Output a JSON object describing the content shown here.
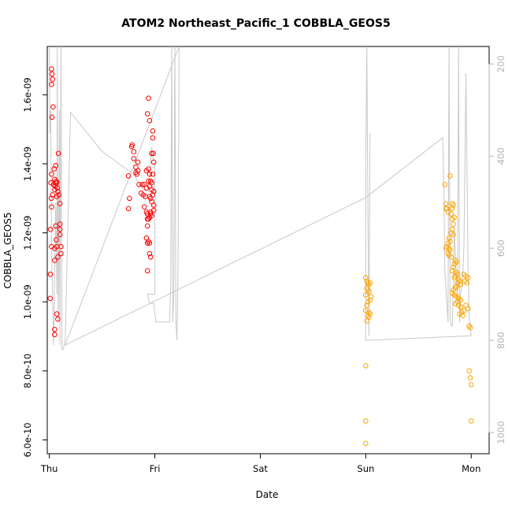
{
  "chart_data": {
    "type": "scatter",
    "title": "ATOM2 Northeast_Pacific_1 COBBLA_GEOS5",
    "xlabel": "Date",
    "ylabel": "COBBLA_GEOS5",
    "xlim": [
      -0.02,
      4.17
    ],
    "ylim": [
      5.6e-10,
      1.74e-09
    ],
    "x_ticks": [
      0,
      1,
      2,
      3,
      4
    ],
    "x_tick_labels": [
      "Thu",
      "Fri",
      "Sat",
      "Sun",
      "Mon"
    ],
    "y_ticks": [
      6e-10,
      8e-10,
      1e-09,
      1.2e-09,
      1.4e-09,
      1.6e-09
    ],
    "y_tick_labels": [
      "6.0e-10",
      "8.0e-10",
      "1.0e-09",
      "1.2e-09",
      "1.4e-09",
      "1.6e-09"
    ],
    "y2_ticks": [
      200,
      400,
      600,
      800,
      1000
    ],
    "y2_tick_labels": [
      "200",
      "400",
      "600",
      "800",
      "1000"
    ],
    "y2lim": [
      1046,
      162
    ],
    "y2_reversed": true,
    "grid": false,
    "series": [
      {
        "color": "#ff0000",
        "marker": "open-circle",
        "points": [
          [
            0.02,
            1.675
          ],
          [
            0.025,
            1.66
          ],
          [
            0.03,
            1.645
          ],
          [
            0.02,
            1.63
          ],
          [
            0.035,
            1.565
          ],
          [
            0.025,
            1.535
          ],
          [
            0.02,
            1.37
          ],
          [
            0.015,
            1.345
          ],
          [
            0.03,
            1.31
          ],
          [
            0.018,
            1.3
          ],
          [
            0.02,
            1.275
          ],
          [
            0.01,
            1.21
          ],
          [
            0.02,
            1.16
          ],
          [
            0.01,
            1.08
          ],
          [
            0.008,
            1.01
          ],
          [
            0.045,
            1.385
          ],
          [
            0.06,
            1.395
          ],
          [
            0.05,
            1.355
          ],
          [
            0.065,
            1.35
          ],
          [
            0.07,
            1.345
          ],
          [
            0.055,
            1.335
          ],
          [
            0.075,
            1.33
          ],
          [
            0.05,
            1.325
          ],
          [
            0.08,
            1.32
          ],
          [
            0.09,
            1.31
          ],
          [
            0.07,
            1.305
          ],
          [
            0.085,
            1.43
          ],
          [
            0.1,
            1.285
          ],
          [
            0.06,
            1.22
          ],
          [
            0.1,
            1.225
          ],
          [
            0.1,
            1.21
          ],
          [
            0.065,
            1.18
          ],
          [
            0.1,
            1.195
          ],
          [
            0.05,
            1.155
          ],
          [
            0.07,
            1.16
          ],
          [
            0.11,
            1.16
          ],
          [
            0.11,
            1.14
          ],
          [
            0.08,
            1.13
          ],
          [
            0.05,
            1.12
          ],
          [
            0.07,
            0.965
          ],
          [
            0.08,
            0.95
          ],
          [
            0.05,
            0.92
          ],
          [
            0.05,
            0.905
          ],
          [
            0.04,
            1.34
          ],
          [
            0.06,
            1.345
          ],
          [
            0.75,
            1.365
          ],
          [
            0.76,
            1.3
          ],
          [
            0.75,
            1.27
          ],
          [
            0.78,
            1.45
          ],
          [
            0.785,
            1.455
          ],
          [
            0.8,
            1.435
          ],
          [
            0.8,
            1.415
          ],
          [
            0.82,
            1.39
          ],
          [
            0.82,
            1.375
          ],
          [
            0.83,
            1.37
          ],
          [
            0.84,
            1.405
          ],
          [
            0.84,
            1.38
          ],
          [
            0.85,
            1.34
          ],
          [
            0.87,
            1.315
          ],
          [
            0.88,
            1.34
          ],
          [
            0.9,
            1.34
          ],
          [
            0.89,
            1.31
          ],
          [
            0.91,
            1.305
          ],
          [
            0.92,
            1.33
          ],
          [
            0.9,
            1.275
          ],
          [
            0.92,
            1.26
          ],
          [
            0.93,
            1.24
          ],
          [
            0.93,
            1.22
          ],
          [
            0.92,
            1.185
          ],
          [
            0.94,
            1.175
          ],
          [
            0.93,
            1.17
          ],
          [
            0.95,
            1.17
          ],
          [
            0.95,
            1.14
          ],
          [
            0.96,
            1.13
          ],
          [
            0.93,
            1.09
          ],
          [
            0.94,
            1.59
          ],
          [
            0.93,
            1.545
          ],
          [
            0.95,
            1.525
          ],
          [
            0.92,
            1.38
          ],
          [
            0.94,
            1.385
          ],
          [
            0.95,
            1.37
          ],
          [
            0.94,
            1.35
          ],
          [
            0.96,
            1.35
          ],
          [
            0.97,
            1.345
          ],
          [
            0.95,
            1.335
          ],
          [
            0.97,
            1.325
          ],
          [
            0.95,
            1.305
          ],
          [
            0.96,
            1.3
          ],
          [
            0.98,
            1.31
          ],
          [
            0.99,
            1.32
          ],
          [
            0.97,
            1.29
          ],
          [
            0.99,
            1.28
          ],
          [
            0.99,
            1.265
          ],
          [
            0.96,
            1.26
          ],
          [
            0.97,
            1.25
          ],
          [
            0.95,
            1.245
          ],
          [
            0.98,
            1.495
          ],
          [
            0.98,
            1.475
          ],
          [
            0.97,
            1.43
          ],
          [
            0.985,
            1.43
          ],
          [
            0.99,
            1.405
          ],
          [
            0.98,
            1.37
          ],
          [
            0.96,
            1.255
          ],
          [
            0.93,
            1.255
          ],
          [
            0.94,
            1.24
          ]
        ]
      },
      {
        "color": "#ffa500",
        "marker": "open-circle",
        "points": [
          [
            3.0,
            1.07
          ],
          [
            3.01,
            1.06
          ],
          [
            3.02,
            1.055
          ],
          [
            3.03,
            1.05
          ],
          [
            3.04,
            1.055
          ],
          [
            3.01,
            1.04
          ],
          [
            3.02,
            1.035
          ],
          [
            3.03,
            1.03
          ],
          [
            3.0,
            1.02
          ],
          [
            3.05,
            1.015
          ],
          [
            3.04,
            1.005
          ],
          [
            3.02,
            1.0
          ],
          [
            3.01,
            0.99
          ],
          [
            3.0,
            0.975
          ],
          [
            3.03,
            0.97
          ],
          [
            3.04,
            0.965
          ],
          [
            3.02,
            0.96
          ],
          [
            3.03,
            0.955
          ],
          [
            3.01,
            0.945
          ],
          [
            3.0,
            0.815
          ],
          [
            3.0,
            0.655
          ],
          [
            3.0,
            0.59
          ],
          [
            3.75,
            1.34
          ],
          [
            3.76,
            1.285
          ],
          [
            3.77,
            1.27
          ],
          [
            3.76,
            1.27
          ],
          [
            3.78,
            1.26
          ],
          [
            3.8,
            1.365
          ],
          [
            3.82,
            1.285
          ],
          [
            3.83,
            1.28
          ],
          [
            3.82,
            1.27
          ],
          [
            3.81,
            1.255
          ],
          [
            3.84,
            1.245
          ],
          [
            3.82,
            1.24
          ],
          [
            3.83,
            1.225
          ],
          [
            3.82,
            1.21
          ],
          [
            3.81,
            1.2
          ],
          [
            3.83,
            1.195
          ],
          [
            3.79,
            1.185
          ],
          [
            3.8,
            1.175
          ],
          [
            3.78,
            1.17
          ],
          [
            3.77,
            1.16
          ],
          [
            3.76,
            1.155
          ],
          [
            3.79,
            1.155
          ],
          [
            3.8,
            1.15
          ],
          [
            3.78,
            1.14
          ],
          [
            3.79,
            1.135
          ],
          [
            3.81,
            1.13
          ],
          [
            3.85,
            1.12
          ],
          [
            3.86,
            1.115
          ],
          [
            3.84,
            1.11
          ],
          [
            3.83,
            1.1
          ],
          [
            3.82,
            1.09
          ],
          [
            3.86,
            1.085
          ],
          [
            3.87,
            1.08
          ],
          [
            3.85,
            1.075
          ],
          [
            3.84,
            1.07
          ],
          [
            3.88,
            1.065
          ],
          [
            3.89,
            1.06
          ],
          [
            3.87,
            1.055
          ],
          [
            3.9,
            1.05
          ],
          [
            3.86,
            1.045
          ],
          [
            3.85,
            1.04
          ],
          [
            3.83,
            1.035
          ],
          [
            3.82,
            1.025
          ],
          [
            3.84,
            1.02
          ],
          [
            3.86,
            1.015
          ],
          [
            3.88,
            1.01
          ],
          [
            3.9,
            1.005
          ],
          [
            3.87,
            1.0
          ],
          [
            3.85,
            0.995
          ],
          [
            3.88,
            0.99
          ],
          [
            3.9,
            0.985
          ],
          [
            3.93,
            0.975
          ],
          [
            3.91,
            0.97
          ],
          [
            3.89,
            0.965
          ],
          [
            3.92,
            0.96
          ],
          [
            3.94,
            1.06
          ],
          [
            3.96,
            1.055
          ],
          [
            3.97,
            1.07
          ],
          [
            3.95,
            1.075
          ],
          [
            3.93,
            1.08
          ],
          [
            3.95,
            0.99
          ],
          [
            3.97,
            0.98
          ],
          [
            3.98,
            0.93
          ],
          [
            3.99,
            0.925
          ],
          [
            3.98,
            0.8
          ],
          [
            3.99,
            0.78
          ],
          [
            4.0,
            0.76
          ],
          [
            4.0,
            0.655
          ]
        ]
      }
    ],
    "line_series": {
      "color": "#c8c8c8",
      "axis": "right",
      "points": [
        [
          0.0,
          150
        ],
        [
          0.005,
          350
        ],
        [
          0.012,
          300
        ],
        [
          0.02,
          600
        ],
        [
          0.03,
          700
        ],
        [
          0.04,
          810
        ],
        [
          0.05,
          650
        ],
        [
          0.06,
          500
        ],
        [
          0.07,
          700
        ],
        [
          0.075,
          150
        ],
        [
          0.08,
          600
        ],
        [
          0.085,
          760
        ],
        [
          0.095,
          300
        ],
        [
          0.1,
          810
        ],
        [
          0.11,
          150
        ],
        [
          0.12,
          820
        ],
        [
          0.13,
          820
        ],
        [
          0.15,
          800
        ],
        [
          0.2,
          305
        ],
        [
          0.5,
          390
        ],
        [
          0.8,
          440
        ],
        [
          0.9,
          475
        ],
        [
          0.95,
          475
        ],
        [
          0.95,
          440
        ],
        [
          0.96,
          420
        ],
        [
          0.97,
          380
        ],
        [
          0.98,
          400
        ],
        [
          0.99,
          410
        ],
        [
          1.0,
          420
        ],
        [
          1.0,
          430
        ],
        [
          1.0,
          700
        ],
        [
          0.93,
          700
        ],
        [
          0.95,
          720
        ],
        [
          0.99,
          720
        ],
        [
          1.0,
          740
        ],
        [
          1.01,
          760
        ],
        [
          1.05,
          760
        ],
        [
          1.06,
          760
        ],
        [
          1.1,
          760
        ],
        [
          1.14,
          760
        ],
        [
          1.15,
          680
        ],
        [
          1.16,
          150
        ],
        [
          1.17,
          760
        ],
        [
          1.18,
          700
        ],
        [
          1.19,
          150
        ],
        [
          1.2,
          760
        ],
        [
          1.21,
          800
        ],
        [
          1.22,
          650
        ],
        [
          1.23,
          150
        ],
        [
          0.15,
          810
        ],
        [
          3.0,
          490
        ],
        [
          3.73,
          360
        ],
        [
          3.74,
          470
        ],
        [
          3.75,
          650
        ],
        [
          3.78,
          760
        ],
        [
          3.79,
          150
        ],
        [
          3.8,
          760
        ],
        [
          3.82,
          770
        ],
        [
          3.83,
          680
        ],
        [
          3.84,
          560
        ],
        [
          3.85,
          620
        ],
        [
          3.87,
          720
        ],
        [
          3.88,
          150
        ],
        [
          3.89,
          760
        ],
        [
          3.9,
          700
        ],
        [
          3.92,
          660
        ],
        [
          3.93,
          600
        ],
        [
          3.94,
          430
        ],
        [
          3.95,
          220
        ],
        [
          3.97,
          640
        ],
        [
          3.98,
          750
        ],
        [
          4.0,
          790
        ],
        [
          3.0,
          800
        ],
        [
          3.0,
          420
        ],
        [
          3.01,
          150
        ],
        [
          3.02,
          500
        ],
        [
          3.03,
          790
        ],
        [
          3.04,
          350
        ]
      ]
    }
  }
}
